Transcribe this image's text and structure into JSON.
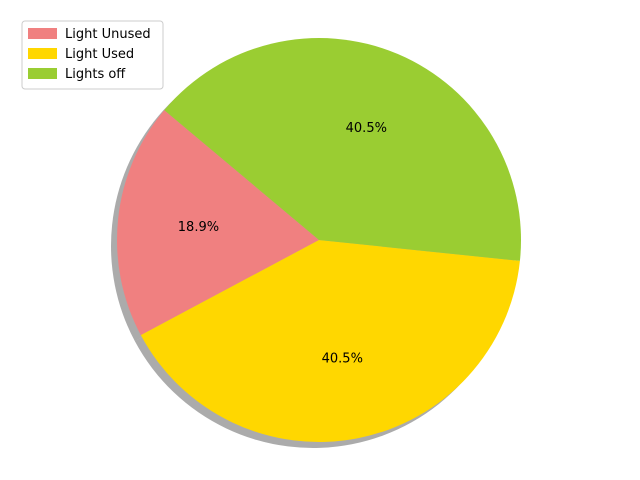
{
  "chart_data": {
    "type": "pie",
    "title": "",
    "labels": [
      "Light Unused",
      "Light Used",
      "Lights off"
    ],
    "values": [
      18.9,
      40.5,
      40.5
    ],
    "percent_labels": [
      "18.9%",
      "40.5%",
      "40.5%"
    ],
    "colors": [
      "#f08080",
      "#ffd700",
      "#9acd32"
    ],
    "start_angle_deg": 140,
    "direction": "counterclockwise",
    "shadow": true,
    "legend": {
      "position": "top-left",
      "entries": [
        "Light Unused",
        "Light Used",
        "Lights off"
      ]
    }
  }
}
